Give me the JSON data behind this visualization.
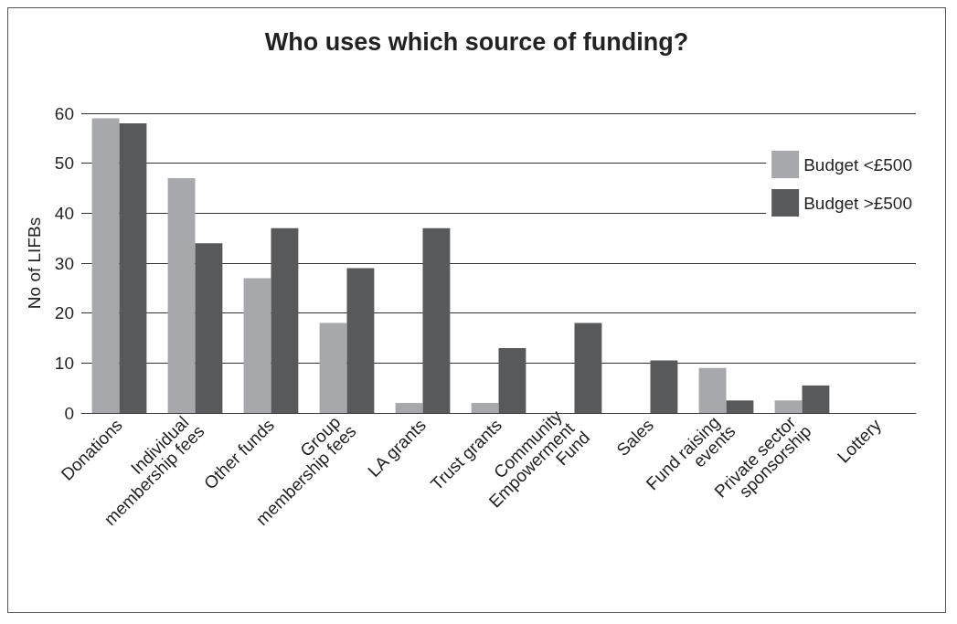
{
  "chart_data": {
    "type": "bar",
    "title": "Who uses which source of funding?",
    "ylabel": "No of LIFBs",
    "categories": [
      "Donations",
      "Individual membership fees",
      "Other funds",
      "Group membership fees",
      "LA grants",
      "Trust grants",
      "Community Empowerment Fund",
      "Sales",
      "Fund raising events",
      "Private sector sponsorship",
      "Lottery"
    ],
    "series": [
      {
        "name": "Budget <£500",
        "color": "#a7a8ab",
        "values": [
          59,
          47,
          27,
          18,
          2,
          2,
          0,
          0,
          9,
          2.5,
          0
        ]
      },
      {
        "name": "Budget >£500",
        "color": "#58595b",
        "values": [
          58,
          34,
          37,
          29,
          37,
          13,
          18,
          10.5,
          2.5,
          5.5,
          0
        ]
      }
    ],
    "ylim": [
      0,
      60
    ],
    "yticks": [
      0,
      10,
      20,
      30,
      40,
      50,
      60
    ],
    "grid": "y",
    "legend": "top right"
  }
}
